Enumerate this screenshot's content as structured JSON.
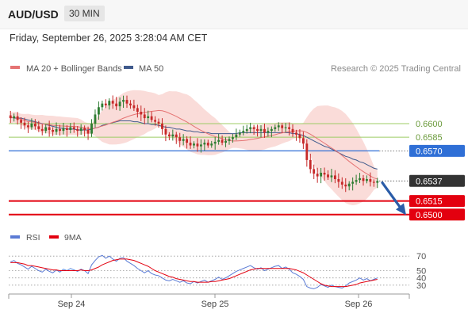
{
  "header": {
    "pair": "AUD/USD",
    "timeframe": "30 MIN",
    "datetime": "Friday, September 26, 2025 3:28:04 AM CET"
  },
  "colors": {
    "up": "#2e7d32",
    "down": "#c62828",
    "band_fill": "#f8d0cc",
    "ma20": "#e57373",
    "ma50": "#3f5a8c",
    "resistance": "#9ccc65",
    "pivot": "#2f6fd6",
    "support": "#e3000f",
    "arrow": "#2a5ca8",
    "rsi": "#5b7bd5",
    "rsi_ma": "#e3000f"
  },
  "legend": {
    "ma20": "MA 20 + Bollinger Bands",
    "ma50": "MA 50",
    "credit": "Research © 2025 Trading Central"
  },
  "chart_data": [
    {
      "type": "candlestick",
      "title": "AUD/USD 30 MIN",
      "x_ticks": [
        "Sep 24",
        "Sep 25",
        "Sep 26"
      ],
      "ylim": [
        0.6492,
        0.664
      ],
      "levels": [
        {
          "label": "0.6600",
          "value": 0.66,
          "kind": "resistance"
        },
        {
          "label": "0.6585",
          "value": 0.6585,
          "kind": "resistance"
        },
        {
          "label": "0.6570",
          "value": 0.657,
          "kind": "pivot"
        },
        {
          "label": "0.6537",
          "value": 0.6537,
          "kind": "last"
        },
        {
          "label": "0.6515",
          "value": 0.6515,
          "kind": "support"
        },
        {
          "label": "0.6500",
          "value": 0.65,
          "kind": "support"
        }
      ],
      "close": [
        0.6606,
        0.6608,
        0.6604,
        0.6601,
        0.6598,
        0.6596,
        0.66,
        0.6597,
        0.6594,
        0.6592,
        0.6596,
        0.6593,
        0.6591,
        0.6594,
        0.6592,
        0.6595,
        0.6593,
        0.6596,
        0.6594,
        0.6592,
        0.6595,
        0.6593,
        0.6589,
        0.66,
        0.661,
        0.6618,
        0.6622,
        0.662,
        0.6625,
        0.6622,
        0.6619,
        0.6624,
        0.6626,
        0.6622,
        0.662,
        0.6617,
        0.6613,
        0.661,
        0.6606,
        0.6608,
        0.6604,
        0.6602,
        0.66,
        0.6594,
        0.6588,
        0.6586,
        0.6588,
        0.6585,
        0.6581,
        0.6583,
        0.6579,
        0.6576,
        0.6578,
        0.6575,
        0.6577,
        0.6579,
        0.6576,
        0.6578,
        0.658,
        0.6582,
        0.6579,
        0.6581,
        0.6583,
        0.6585,
        0.6588,
        0.659,
        0.6592,
        0.6594,
        0.6596,
        0.6594,
        0.6592,
        0.6594,
        0.659,
        0.6592,
        0.6594,
        0.6596,
        0.6598,
        0.6595,
        0.6596,
        0.6594,
        0.659,
        0.6588,
        0.6584,
        0.6578,
        0.656,
        0.655,
        0.6545,
        0.6542,
        0.6546,
        0.6544,
        0.6541,
        0.6543,
        0.6539,
        0.6536,
        0.6533,
        0.6531,
        0.6534,
        0.6536,
        0.6538,
        0.654,
        0.6537,
        0.6539,
        0.6536,
        0.6535,
        0.6537
      ],
      "ma50": [
        0.6607,
        0.6606,
        0.6606,
        0.6606,
        0.6605,
        0.6604,
        0.6603,
        0.6602,
        0.6601,
        0.66,
        0.6599,
        0.6598,
        0.6597,
        0.6596,
        0.6595,
        0.6595,
        0.6594,
        0.6594,
        0.6594,
        0.6593,
        0.6593,
        0.6593,
        0.6593,
        0.6594,
        0.6595,
        0.6596,
        0.6598,
        0.6599,
        0.66,
        0.6601,
        0.6602,
        0.6603,
        0.6603,
        0.6603,
        0.6603,
        0.6602,
        0.6602,
        0.6601,
        0.66,
        0.66,
        0.6599,
        0.6599,
        0.6598,
        0.6597,
        0.6596,
        0.6596,
        0.6595,
        0.6594,
        0.6594,
        0.6593,
        0.6592,
        0.6592,
        0.6591,
        0.6591,
        0.659,
        0.659,
        0.659,
        0.6589,
        0.6589,
        0.6589,
        0.6589,
        0.6589,
        0.6589,
        0.6589,
        0.6589,
        0.659,
        0.659,
        0.659,
        0.659,
        0.659,
        0.659,
        0.659,
        0.659,
        0.659,
        0.659,
        0.659,
        0.659,
        0.659,
        0.659,
        0.659,
        0.6589,
        0.6589,
        0.6588,
        0.6587,
        0.6585,
        0.6583,
        0.6581,
        0.6579,
        0.6577,
        0.6575,
        0.6574,
        0.6572,
        0.657,
        0.6568,
        0.6566,
        0.6564,
        0.6563,
        0.6561,
        0.656,
        0.6558,
        0.6557,
        0.6555,
        0.6553,
        0.6551,
        0.655
      ]
    },
    {
      "type": "line",
      "legend": [
        "RSI",
        "9MA"
      ],
      "y_ticks": [
        70,
        50,
        40,
        30
      ],
      "ylim": [
        20,
        80
      ],
      "rsi": [
        62,
        64,
        60,
        58,
        55,
        52,
        56,
        53,
        50,
        48,
        52,
        49,
        47,
        51,
        48,
        52,
        50,
        53,
        51,
        49,
        52,
        50,
        46,
        58,
        64,
        69,
        71,
        67,
        70,
        66,
        63,
        67,
        68,
        63,
        60,
        57,
        53,
        50,
        47,
        50,
        46,
        44,
        43,
        40,
        37,
        36,
        38,
        36,
        34,
        36,
        33,
        32,
        35,
        33,
        35,
        37,
        34,
        36,
        38,
        41,
        38,
        40,
        43,
        46,
        49,
        51,
        53,
        55,
        57,
        54,
        52,
        54,
        50,
        52,
        54,
        56,
        57,
        53,
        55,
        52,
        47,
        45,
        42,
        38,
        28,
        26,
        25,
        27,
        31,
        29,
        27,
        30,
        28,
        27,
        26,
        29,
        33,
        35,
        37,
        40,
        37,
        39,
        36,
        38,
        40
      ],
      "rsi_ma": [
        61,
        61,
        61,
        60,
        59,
        57,
        57,
        56,
        55,
        54,
        53,
        52,
        51,
        51,
        50,
        50,
        50,
        50,
        50,
        50,
        51,
        50,
        50,
        51,
        53,
        55,
        58,
        60,
        62,
        64,
        65,
        66,
        66,
        66,
        65,
        64,
        62,
        60,
        58,
        56,
        53,
        50,
        48,
        46,
        44,
        42,
        41,
        39,
        38,
        37,
        36,
        35,
        35,
        34,
        34,
        34,
        34,
        35,
        35,
        36,
        37,
        38,
        39,
        41,
        43,
        45,
        47,
        49,
        51,
        52,
        53,
        53,
        53,
        53,
        53,
        53,
        53,
        53,
        53,
        53,
        52,
        51,
        49,
        47,
        44,
        41,
        38,
        35,
        32,
        30,
        29,
        28,
        28,
        28,
        28,
        28,
        29,
        30,
        31,
        33,
        34,
        35,
        36,
        37,
        38
      ]
    }
  ]
}
